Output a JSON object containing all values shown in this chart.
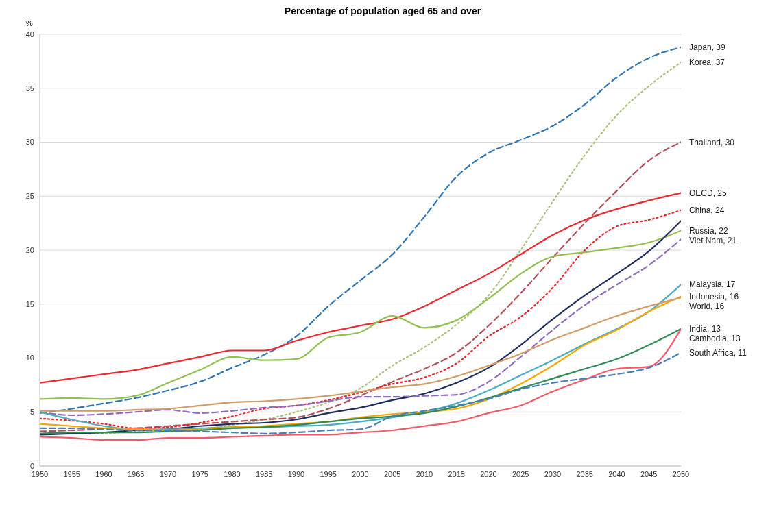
{
  "chart_data": {
    "type": "line",
    "title": "Percentage of population aged 65 and over",
    "ylabel": "%",
    "x": [
      1950,
      1955,
      1960,
      1965,
      1970,
      1975,
      1980,
      1985,
      1990,
      1995,
      2000,
      2005,
      2010,
      2015,
      2020,
      2025,
      2030,
      2035,
      2040,
      2045,
      2050
    ],
    "xlim": [
      1950,
      2050
    ],
    "xticks": [
      1950,
      1955,
      1960,
      1965,
      1970,
      1975,
      1980,
      1985,
      1990,
      1995,
      2000,
      2005,
      2010,
      2015,
      2020,
      2025,
      2030,
      2035,
      2040,
      2045,
      2050
    ],
    "ylim": [
      0,
      40
    ],
    "yticks": [
      0,
      5,
      10,
      15,
      20,
      25,
      30,
      35,
      40
    ],
    "grid": "y",
    "marker": "none",
    "series": [
      {
        "name": "Japan, 39",
        "color": "#2e75b6",
        "line_style": "dashed",
        "values": [
          4.9,
          5.3,
          5.8,
          6.3,
          7,
          7.8,
          9.1,
          10.3,
          12,
          14.8,
          17.2,
          19.6,
          23.1,
          26.8,
          29,
          30.2,
          31.5,
          33.5,
          36,
          37.8,
          38.8
        ]
      },
      {
        "name": "Korea, 37",
        "color": "#a9c27a",
        "line_style": "dotted",
        "values": [
          3,
          3,
          3,
          3.2,
          3.2,
          3.4,
          3.8,
          4.3,
          5,
          5.9,
          7.2,
          9.3,
          11,
          13.1,
          15.8,
          20,
          24.5,
          28.8,
          32.5,
          35.2,
          37.4
        ]
      },
      {
        "name": "Thailand, 30",
        "color": "#b4505a",
        "line_style": "dashed",
        "values": [
          3.2,
          3.3,
          3.4,
          3.5,
          3.7,
          3.9,
          4.1,
          4.3,
          4.5,
          5.3,
          6.5,
          7.8,
          9,
          10.5,
          13,
          16,
          19.3,
          22.5,
          25.5,
          28.3,
          30
        ]
      },
      {
        "name": "OECD, 25",
        "color": "#f0282d",
        "line_style": "solid",
        "values": [
          7.7,
          8.1,
          8.5,
          8.9,
          9.5,
          10.1,
          10.7,
          10.7,
          11.6,
          12.4,
          13,
          13.6,
          14.8,
          16.3,
          17.8,
          19.6,
          21.4,
          22.8,
          23.8,
          24.6,
          25.3
        ]
      },
      {
        "name": "China, 24",
        "color": "#e8262c",
        "line_style": "dotted",
        "values": [
          4.4,
          4.2,
          3.9,
          3.5,
          3.6,
          4,
          4.6,
          5.3,
          5.6,
          6.1,
          6.8,
          7.6,
          8.2,
          9.5,
          12,
          13.8,
          16.5,
          20,
          22.2,
          22.8,
          23.7
        ]
      },
      {
        "name": "Russia, 22",
        "color": "#92c050",
        "line_style": "solid",
        "values": [
          6.2,
          6.3,
          6.2,
          6.5,
          7.7,
          8.9,
          10.1,
          9.8,
          9.9,
          11.9,
          12.4,
          13.9,
          12.8,
          13.5,
          15.5,
          17.8,
          19.4,
          19.8,
          20.2,
          20.7,
          21.8
        ]
      },
      {
        "color": "#1f2d5a",
        "line_style": "solid",
        "values": [
          2.9,
          3,
          3.1,
          3.3,
          3.4,
          3.7,
          3.9,
          4,
          4.3,
          4.9,
          5.4,
          6.1,
          6.7,
          7.7,
          9.1,
          11.2,
          13.6,
          15.8,
          17.8,
          19.9,
          22.7
        ]
      },
      {
        "name": "Viet Nam, 21",
        "color": "#8e6bbf",
        "line_style": "dashed",
        "values": [
          5,
          4.7,
          4.8,
          5,
          5.2,
          4.9,
          5.1,
          5.4,
          5.6,
          6,
          6.4,
          6.4,
          6.5,
          6.6,
          7.8,
          10.1,
          12.6,
          14.9,
          16.8,
          18.6,
          21
        ]
      },
      {
        "name": "Malaysia, 17",
        "color": "#4bacc6",
        "line_style": "solid",
        "values": [
          5,
          4.3,
          3.7,
          3.4,
          3.4,
          3.5,
          3.6,
          3.6,
          3.7,
          3.8,
          4.1,
          4.5,
          5,
          5.8,
          7,
          8.4,
          9.8,
          11.3,
          12.7,
          14.3,
          16.8
        ]
      },
      {
        "name": "Indonesia, 16",
        "color": "#f6a800",
        "line_style": "solid",
        "values": [
          3.9,
          3.7,
          3.5,
          3.4,
          3.3,
          3.4,
          3.6,
          3.7,
          3.9,
          4.1,
          4.5,
          4.8,
          5,
          5.3,
          6.2,
          7.6,
          9.3,
          11.2,
          12.6,
          14.3,
          15.7
        ]
      },
      {
        "name": "World, 16",
        "color": "#d39b67",
        "line_style": "solid",
        "values": [
          5.1,
          5.1,
          5.1,
          5.2,
          5.3,
          5.6,
          5.9,
          6,
          6.2,
          6.5,
          6.9,
          7.3,
          7.6,
          8.3,
          9.3,
          10.4,
          11.7,
          12.8,
          13.9,
          14.8,
          15.6
        ]
      },
      {
        "name": "India, 13",
        "color": "#2e8b57",
        "line_style": "solid",
        "values": [
          3,
          3.1,
          3.1,
          3.1,
          3.2,
          3.3,
          3.5,
          3.6,
          3.8,
          4.1,
          4.4,
          4.6,
          4.9,
          5.5,
          6.3,
          7.2,
          8.1,
          9,
          9.9,
          11.2,
          12.7
        ]
      },
      {
        "name": "Cambodia, 13",
        "color": "#f4596a",
        "line_style": "solid",
        "values": [
          2.7,
          2.6,
          2.4,
          2.4,
          2.6,
          2.6,
          2.7,
          2.8,
          2.9,
          2.9,
          3.1,
          3.3,
          3.7,
          4.1,
          4.9,
          5.6,
          6.9,
          8,
          9,
          9.2,
          12.7
        ]
      },
      {
        "name": "South Africa, 11",
        "color": "#4a7ebb",
        "line_style": "dashed",
        "values": [
          3.5,
          3.5,
          3.4,
          3.3,
          3.3,
          3.2,
          3.1,
          3,
          3.1,
          3.3,
          3.4,
          4.6,
          5.1,
          5.6,
          6.2,
          7.1,
          7.7,
          8.1,
          8.5,
          9.1,
          10.5
        ]
      }
    ]
  }
}
